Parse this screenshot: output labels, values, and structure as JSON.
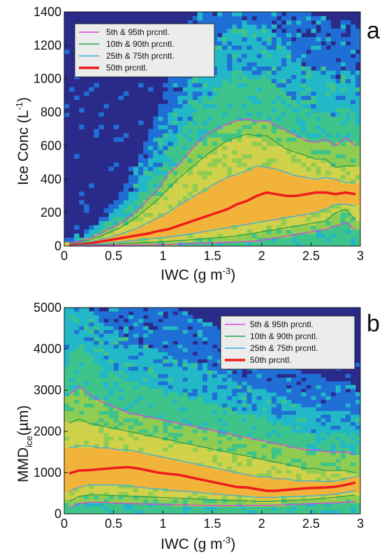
{
  "colors": {
    "background": "#2a2a8a",
    "heat_ramp": [
      "#2a2a8a",
      "#1f6fd6",
      "#22b8c8",
      "#3ec48a",
      "#8fcc52",
      "#cfd24a",
      "#f0c23a",
      "#f2b33a"
    ],
    "p5_95": "#e040e0",
    "p10_90": "#27a04a",
    "p25_75": "#35b0e0",
    "p50": "#ee1c1c"
  },
  "chart_data": [
    {
      "type": "heatmap",
      "panel_label": "a",
      "xlabel": "IWC (g m-3)",
      "xlabel_main": "IWC  (g m",
      "xlabel_sup": "-3",
      "xlabel_end": ")",
      "ylabel": "Ice Conc (L-1)",
      "ylabel_main": "Ice Conc  (L",
      "ylabel_sup": "-1",
      "ylabel_end": ")",
      "xlim": [
        0,
        3
      ],
      "ylim": [
        0,
        1400
      ],
      "xticks": [
        "0",
        "0.5",
        "1",
        "1.5",
        "2",
        "2.5",
        "3"
      ],
      "yticks": [
        "0",
        "200",
        "400",
        "600",
        "800",
        "1000",
        "1200",
        "1400"
      ],
      "legend_position": "top-left",
      "legend": [
        "5th & 95th prcntl.",
        "10th & 90th prcntl.",
        "25th & 75th prcntl.",
        "50th prcntl."
      ],
      "x": [
        0.05,
        0.15,
        0.25,
        0.35,
        0.45,
        0.55,
        0.65,
        0.75,
        0.85,
        0.95,
        1.05,
        1.15,
        1.25,
        1.35,
        1.45,
        1.55,
        1.65,
        1.75,
        1.85,
        1.95,
        2.05,
        2.15,
        2.25,
        2.35,
        2.45,
        2.55,
        2.65,
        2.75,
        2.85,
        2.95
      ],
      "series": [
        {
          "name": "5th & 95th prcntl.",
          "role": "p95",
          "values": [
            20,
            30,
            45,
            70,
            100,
            130,
            170,
            220,
            280,
            340,
            430,
            480,
            550,
            620,
            670,
            700,
            730,
            750,
            760,
            745,
            750,
            720,
            690,
            660,
            630,
            620,
            640,
            600,
            650,
            600
          ]
        },
        {
          "name": "10th & 90th prcntl.",
          "role": "p90",
          "values": [
            15,
            25,
            35,
            55,
            80,
            105,
            140,
            180,
            230,
            280,
            340,
            400,
            450,
            500,
            550,
            590,
            630,
            650,
            670,
            660,
            660,
            620,
            580,
            560,
            540,
            520,
            520,
            470,
            480,
            480
          ]
        },
        {
          "name": "25th & 75th prcntl.",
          "role": "p75",
          "values": [
            10,
            18,
            25,
            38,
            52,
            68,
            88,
            110,
            140,
            170,
            200,
            240,
            275,
            310,
            345,
            380,
            410,
            430,
            450,
            480,
            470,
            460,
            440,
            420,
            410,
            400,
            410,
            400,
            380,
            380
          ]
        },
        {
          "name": "50th prcntl.",
          "role": "p50",
          "values": [
            5,
            10,
            15,
            25,
            35,
            45,
            55,
            65,
            75,
            90,
            100,
            120,
            140,
            160,
            180,
            200,
            220,
            250,
            270,
            300,
            320,
            310,
            300,
            300,
            310,
            320,
            320,
            310,
            320,
            310
          ]
        },
        {
          "name": "25th & 75th prcntl.",
          "role": "p25",
          "values": [
            2,
            5,
            8,
            12,
            18,
            24,
            30,
            36,
            42,
            48,
            55,
            62,
            70,
            80,
            90,
            100,
            110,
            120,
            130,
            140,
            150,
            160,
            170,
            180,
            190,
            200,
            220,
            250,
            250,
            240
          ]
        },
        {
          "name": "10th & 90th prcntl.",
          "role": "p10",
          "values": [
            1,
            3,
            5,
            7,
            10,
            13,
            16,
            19,
            22,
            25,
            28,
            32,
            36,
            40,
            45,
            50,
            55,
            60,
            70,
            80,
            90,
            100,
            110,
            120,
            130,
            140,
            150,
            200,
            220,
            160
          ]
        },
        {
          "name": "5th & 95th prcntl.",
          "role": "p5",
          "values": [
            0,
            1,
            2,
            3,
            4,
            5,
            6,
            7,
            8,
            9,
            10,
            12,
            14,
            16,
            18,
            20,
            22,
            25,
            28,
            30,
            40,
            50,
            60,
            70,
            80,
            90,
            100,
            120,
            140,
            100
          ]
        }
      ]
    },
    {
      "type": "heatmap",
      "panel_label": "b",
      "xlabel": "IWC (g m-3)",
      "xlabel_main": "IWC  (g m",
      "xlabel_sup": "-3",
      "xlabel_end": ")",
      "ylabel": "MMDice (µm)",
      "ylabel_main": "MMD",
      "ylabel_sub": "ice",
      "ylabel_end": "(µm)",
      "xlim": [
        0,
        3
      ],
      "ylim": [
        0,
        5000
      ],
      "xticks": [
        "0",
        "0.5",
        "1",
        "1.5",
        "2",
        "2.5",
        "3"
      ],
      "yticks": [
        "0",
        "1000",
        "2000",
        "3000",
        "4000",
        "5000"
      ],
      "legend_position": "top-right",
      "legend": [
        "5th & 95th prcntl.",
        "10th & 90th prcntl.",
        "25th & 75th prcntl.",
        "50th prcntl."
      ],
      "x": [
        0.05,
        0.15,
        0.25,
        0.35,
        0.45,
        0.55,
        0.65,
        0.75,
        0.85,
        0.95,
        1.05,
        1.15,
        1.25,
        1.35,
        1.45,
        1.55,
        1.65,
        1.75,
        1.85,
        1.95,
        2.05,
        2.15,
        2.25,
        2.35,
        2.45,
        2.55,
        2.65,
        2.75,
        2.85,
        2.95
      ],
      "series": [
        {
          "name": "5th & 95th prcntl.",
          "role": "p95",
          "values": [
            2900,
            3100,
            2900,
            2750,
            2650,
            2550,
            2450,
            2400,
            2350,
            2300,
            2250,
            2200,
            2150,
            2100,
            2050,
            2000,
            1950,
            1900,
            1850,
            1800,
            1750,
            1700,
            1650,
            1600,
            1550,
            1550,
            1500,
            1500,
            1500,
            1450
          ]
        },
        {
          "name": "10th & 90th prcntl.",
          "role": "p90",
          "values": [
            2200,
            2300,
            2200,
            2150,
            2100,
            2050,
            2000,
            1950,
            1900,
            1850,
            1800,
            1750,
            1700,
            1650,
            1600,
            1550,
            1500,
            1450,
            1400,
            1350,
            1300,
            1250,
            1200,
            1150,
            1100,
            1100,
            1050,
            1050,
            1050,
            1000
          ]
        },
        {
          "name": "25th & 75th prcntl.",
          "role": "p75",
          "values": [
            1600,
            1650,
            1650,
            1600,
            1600,
            1550,
            1550,
            1500,
            1450,
            1400,
            1350,
            1300,
            1250,
            1200,
            1150,
            1100,
            1050,
            1000,
            950,
            900,
            900,
            850,
            850,
            800,
            800,
            800,
            780,
            800,
            850,
            900
          ]
        },
        {
          "name": "50th prcntl.",
          "role": "p50",
          "values": [
            980,
            1050,
            1060,
            1080,
            1100,
            1120,
            1130,
            1100,
            1050,
            1000,
            970,
            950,
            900,
            850,
            800,
            750,
            700,
            650,
            640,
            600,
            560,
            560,
            580,
            600,
            620,
            630,
            640,
            660,
            700,
            760
          ]
        },
        {
          "name": "25th & 75th prcntl.",
          "role": "p25",
          "values": [
            550,
            650,
            700,
            700,
            700,
            700,
            680,
            650,
            620,
            600,
            580,
            560,
            540,
            520,
            500,
            480,
            460,
            440,
            420,
            400,
            400,
            400,
            410,
            420,
            430,
            440,
            460,
            480,
            520,
            560
          ]
        },
        {
          "name": "10th & 90th prcntl.",
          "role": "p10",
          "values": [
            300,
            420,
            460,
            460,
            450,
            440,
            430,
            420,
            410,
            400,
            390,
            380,
            370,
            360,
            350,
            340,
            330,
            320,
            310,
            300,
            300,
            310,
            320,
            330,
            340,
            360,
            380,
            400,
            430,
            460
          ]
        },
        {
          "name": "5th & 95th prcntl.",
          "role": "p5",
          "values": [
            150,
            250,
            280,
            280,
            270,
            260,
            250,
            240,
            235,
            230,
            225,
            220,
            215,
            210,
            205,
            200,
            200,
            200,
            200,
            200,
            200,
            210,
            220,
            230,
            240,
            250,
            260,
            270,
            280,
            300
          ]
        }
      ]
    }
  ]
}
